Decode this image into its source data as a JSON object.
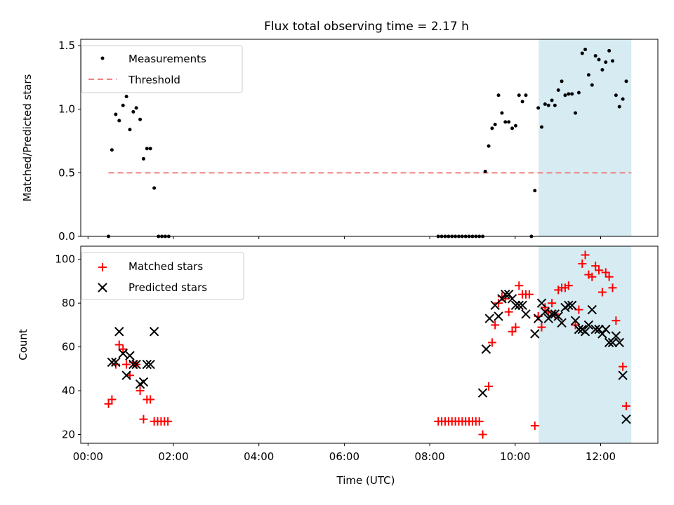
{
  "chart_data": [
    {
      "type": "scatter",
      "title": "Flux total observing time = 2.17 h",
      "xlabel": "",
      "ylabel": "Matched/Predicted stars",
      "xlim": [
        -0.17,
        13.34
      ],
      "ylim": [
        0,
        1.55
      ],
      "yticks": [
        0,
        0.5,
        1.0,
        1.5
      ],
      "ytick_labels": [
        "0.0",
        "0.5",
        "1.0",
        "1.5"
      ],
      "xticks": [
        0,
        2,
        4,
        6,
        8,
        10,
        12
      ],
      "highlight_span": [
        10.55,
        12.72
      ],
      "highlight_color": "#add8e6",
      "legend_position": "upper left",
      "series": [
        {
          "name": "Measurements",
          "marker": "dot",
          "color": "#000000",
          "points": [
            [
              0.48,
              0.0
            ],
            [
              0.56,
              0.68
            ],
            [
              0.65,
              0.96
            ],
            [
              0.73,
              0.91
            ],
            [
              0.82,
              1.03
            ],
            [
              0.9,
              1.1
            ],
            [
              0.98,
              0.84
            ],
            [
              1.06,
              0.98
            ],
            [
              1.13,
              1.01
            ],
            [
              1.22,
              0.92
            ],
            [
              1.3,
              0.61
            ],
            [
              1.38,
              0.69
            ],
            [
              1.46,
              0.69
            ],
            [
              1.55,
              0.38
            ],
            [
              1.65,
              0.0
            ],
            [
              1.73,
              0.0
            ],
            [
              1.81,
              0.0
            ],
            [
              1.89,
              0.0
            ],
            [
              8.2,
              0.0
            ],
            [
              8.28,
              0.0
            ],
            [
              8.36,
              0.0
            ],
            [
              8.44,
              0.0
            ],
            [
              8.52,
              0.0
            ],
            [
              8.6,
              0.0
            ],
            [
              8.68,
              0.0
            ],
            [
              8.76,
              0.0
            ],
            [
              8.84,
              0.0
            ],
            [
              8.92,
              0.0
            ],
            [
              9.0,
              0.0
            ],
            [
              9.08,
              0.0
            ],
            [
              9.16,
              0.0
            ],
            [
              9.24,
              0.0
            ],
            [
              9.3,
              0.51
            ],
            [
              9.38,
              0.71
            ],
            [
              9.46,
              0.85
            ],
            [
              9.53,
              0.88
            ],
            [
              9.61,
              1.11
            ],
            [
              9.69,
              0.97
            ],
            [
              9.77,
              0.9
            ],
            [
              9.85,
              0.9
            ],
            [
              9.93,
              0.85
            ],
            [
              10.01,
              0.87
            ],
            [
              10.09,
              1.11
            ],
            [
              10.17,
              1.06
            ],
            [
              10.25,
              1.11
            ],
            [
              10.38,
              0.0
            ],
            [
              10.46,
              0.36
            ],
            [
              10.54,
              1.01
            ],
            [
              10.62,
              0.86
            ],
            [
              10.7,
              1.04
            ],
            [
              10.78,
              1.03
            ],
            [
              10.86,
              1.07
            ],
            [
              10.93,
              1.03
            ],
            [
              11.01,
              1.15
            ],
            [
              11.09,
              1.22
            ],
            [
              11.17,
              1.11
            ],
            [
              11.25,
              1.12
            ],
            [
              11.33,
              1.12
            ],
            [
              11.41,
              0.97
            ],
            [
              11.49,
              1.13
            ],
            [
              11.57,
              1.44
            ],
            [
              11.64,
              1.47
            ],
            [
              11.72,
              1.27
            ],
            [
              11.8,
              1.19
            ],
            [
              11.88,
              1.42
            ],
            [
              11.96,
              1.39
            ],
            [
              12.04,
              1.31
            ],
            [
              12.12,
              1.37
            ],
            [
              12.2,
              1.46
            ],
            [
              12.28,
              1.38
            ],
            [
              12.36,
              1.11
            ],
            [
              12.44,
              1.02
            ],
            [
              12.52,
              1.08
            ],
            [
              12.6,
              1.22
            ]
          ]
        },
        {
          "name": "Threshold",
          "marker": "dashed-line",
          "color": "#f08080",
          "points": [
            [
              0.48,
              0.5
            ],
            [
              12.72,
              0.5
            ]
          ]
        }
      ]
    },
    {
      "type": "scatter",
      "title": "",
      "xlabel": "Time (UTC)",
      "ylabel": "Count",
      "xlim": [
        -0.17,
        13.34
      ],
      "ylim": [
        16,
        106
      ],
      "yticks": [
        20,
        40,
        60,
        80,
        100
      ],
      "ytick_labels": [
        "20",
        "40",
        "60",
        "80",
        "100"
      ],
      "xticks": [
        0,
        2,
        4,
        6,
        8,
        10,
        12
      ],
      "xtick_labels": [
        "00:00",
        "02:00",
        "04:00",
        "06:00",
        "08:00",
        "10:00",
        "12:00"
      ],
      "highlight_span": [
        10.55,
        12.72
      ],
      "highlight_color": "#add8e6",
      "legend_position": "upper left",
      "series": [
        {
          "name": "Matched stars",
          "marker": "plus",
          "color": "#ff0000",
          "points": [
            [
              0.48,
              34
            ],
            [
              0.56,
              36
            ],
            [
              0.65,
              52
            ],
            [
              0.73,
              61
            ],
            [
              0.82,
              59
            ],
            [
              0.9,
              52
            ],
            [
              0.98,
              47
            ],
            [
              1.06,
              53
            ],
            [
              1.13,
              52
            ],
            [
              1.22,
              40
            ],
            [
              1.3,
              27
            ],
            [
              1.38,
              36
            ],
            [
              1.46,
              36
            ],
            [
              1.55,
              26
            ],
            [
              1.63,
              26
            ],
            [
              1.71,
              26
            ],
            [
              1.79,
              26
            ],
            [
              1.87,
              26
            ],
            [
              8.2,
              26
            ],
            [
              8.28,
              26
            ],
            [
              8.36,
              26
            ],
            [
              8.44,
              26
            ],
            [
              8.52,
              26
            ],
            [
              8.6,
              26
            ],
            [
              8.68,
              26
            ],
            [
              8.76,
              26
            ],
            [
              8.84,
              26
            ],
            [
              8.92,
              26
            ],
            [
              9.0,
              26
            ],
            [
              9.08,
              26
            ],
            [
              9.16,
              26
            ],
            [
              9.24,
              20
            ],
            [
              9.38,
              42
            ],
            [
              9.46,
              62
            ],
            [
              9.53,
              70
            ],
            [
              9.61,
              80
            ],
            [
              9.69,
              83
            ],
            [
              9.77,
              82
            ],
            [
              9.85,
              76
            ],
            [
              9.93,
              67
            ],
            [
              10.01,
              69
            ],
            [
              10.09,
              88
            ],
            [
              10.17,
              84
            ],
            [
              10.25,
              84
            ],
            [
              10.33,
              84
            ],
            [
              10.46,
              24
            ],
            [
              10.54,
              74
            ],
            [
              10.62,
              69
            ],
            [
              10.7,
              78
            ],
            [
              10.78,
              76
            ],
            [
              10.86,
              80
            ],
            [
              10.93,
              75
            ],
            [
              11.01,
              86
            ],
            [
              11.09,
              87
            ],
            [
              11.17,
              87
            ],
            [
              11.25,
              88
            ],
            [
              11.41,
              70
            ],
            [
              11.49,
              77
            ],
            [
              11.57,
              98
            ],
            [
              11.64,
              102
            ],
            [
              11.72,
              93
            ],
            [
              11.8,
              92
            ],
            [
              11.88,
              97
            ],
            [
              11.96,
              95
            ],
            [
              12.04,
              85
            ],
            [
              12.12,
              94
            ],
            [
              12.2,
              92
            ],
            [
              12.28,
              87
            ],
            [
              12.36,
              72
            ],
            [
              12.52,
              51
            ],
            [
              12.6,
              33
            ]
          ]
        },
        {
          "name": "Predicted stars",
          "marker": "x",
          "color": "#000000",
          "points": [
            [
              0.56,
              53
            ],
            [
              0.65,
              53
            ],
            [
              0.73,
              67
            ],
            [
              0.82,
              57
            ],
            [
              0.9,
              47
            ],
            [
              0.98,
              56
            ],
            [
              1.06,
              52
            ],
            [
              1.13,
              52
            ],
            [
              1.22,
              43
            ],
            [
              1.3,
              44
            ],
            [
              1.38,
              52
            ],
            [
              1.46,
              52
            ],
            [
              1.55,
              67
            ],
            [
              9.24,
              39
            ],
            [
              9.32,
              59
            ],
            [
              9.4,
              73
            ],
            [
              9.53,
              79
            ],
            [
              9.61,
              74
            ],
            [
              9.69,
              82
            ],
            [
              9.77,
              84
            ],
            [
              9.85,
              84
            ],
            [
              9.93,
              82
            ],
            [
              10.01,
              79
            ],
            [
              10.09,
              79
            ],
            [
              10.17,
              79
            ],
            [
              10.25,
              75
            ],
            [
              10.46,
              66
            ],
            [
              10.54,
              73
            ],
            [
              10.62,
              80
            ],
            [
              10.7,
              76
            ],
            [
              10.78,
              73
            ],
            [
              10.86,
              75
            ],
            [
              10.93,
              75
            ],
            [
              11.01,
              74
            ],
            [
              11.09,
              71
            ],
            [
              11.17,
              78
            ],
            [
              11.25,
              79
            ],
            [
              11.33,
              79
            ],
            [
              11.41,
              72
            ],
            [
              11.49,
              68
            ],
            [
              11.57,
              68
            ],
            [
              11.64,
              67
            ],
            [
              11.72,
              70
            ],
            [
              11.8,
              77
            ],
            [
              11.88,
              68
            ],
            [
              11.96,
              68
            ],
            [
              12.04,
              66
            ],
            [
              12.12,
              68
            ],
            [
              12.2,
              62
            ],
            [
              12.28,
              62
            ],
            [
              12.36,
              65
            ],
            [
              12.44,
              62
            ],
            [
              12.52,
              47
            ],
            [
              12.6,
              27
            ]
          ]
        }
      ]
    }
  ]
}
